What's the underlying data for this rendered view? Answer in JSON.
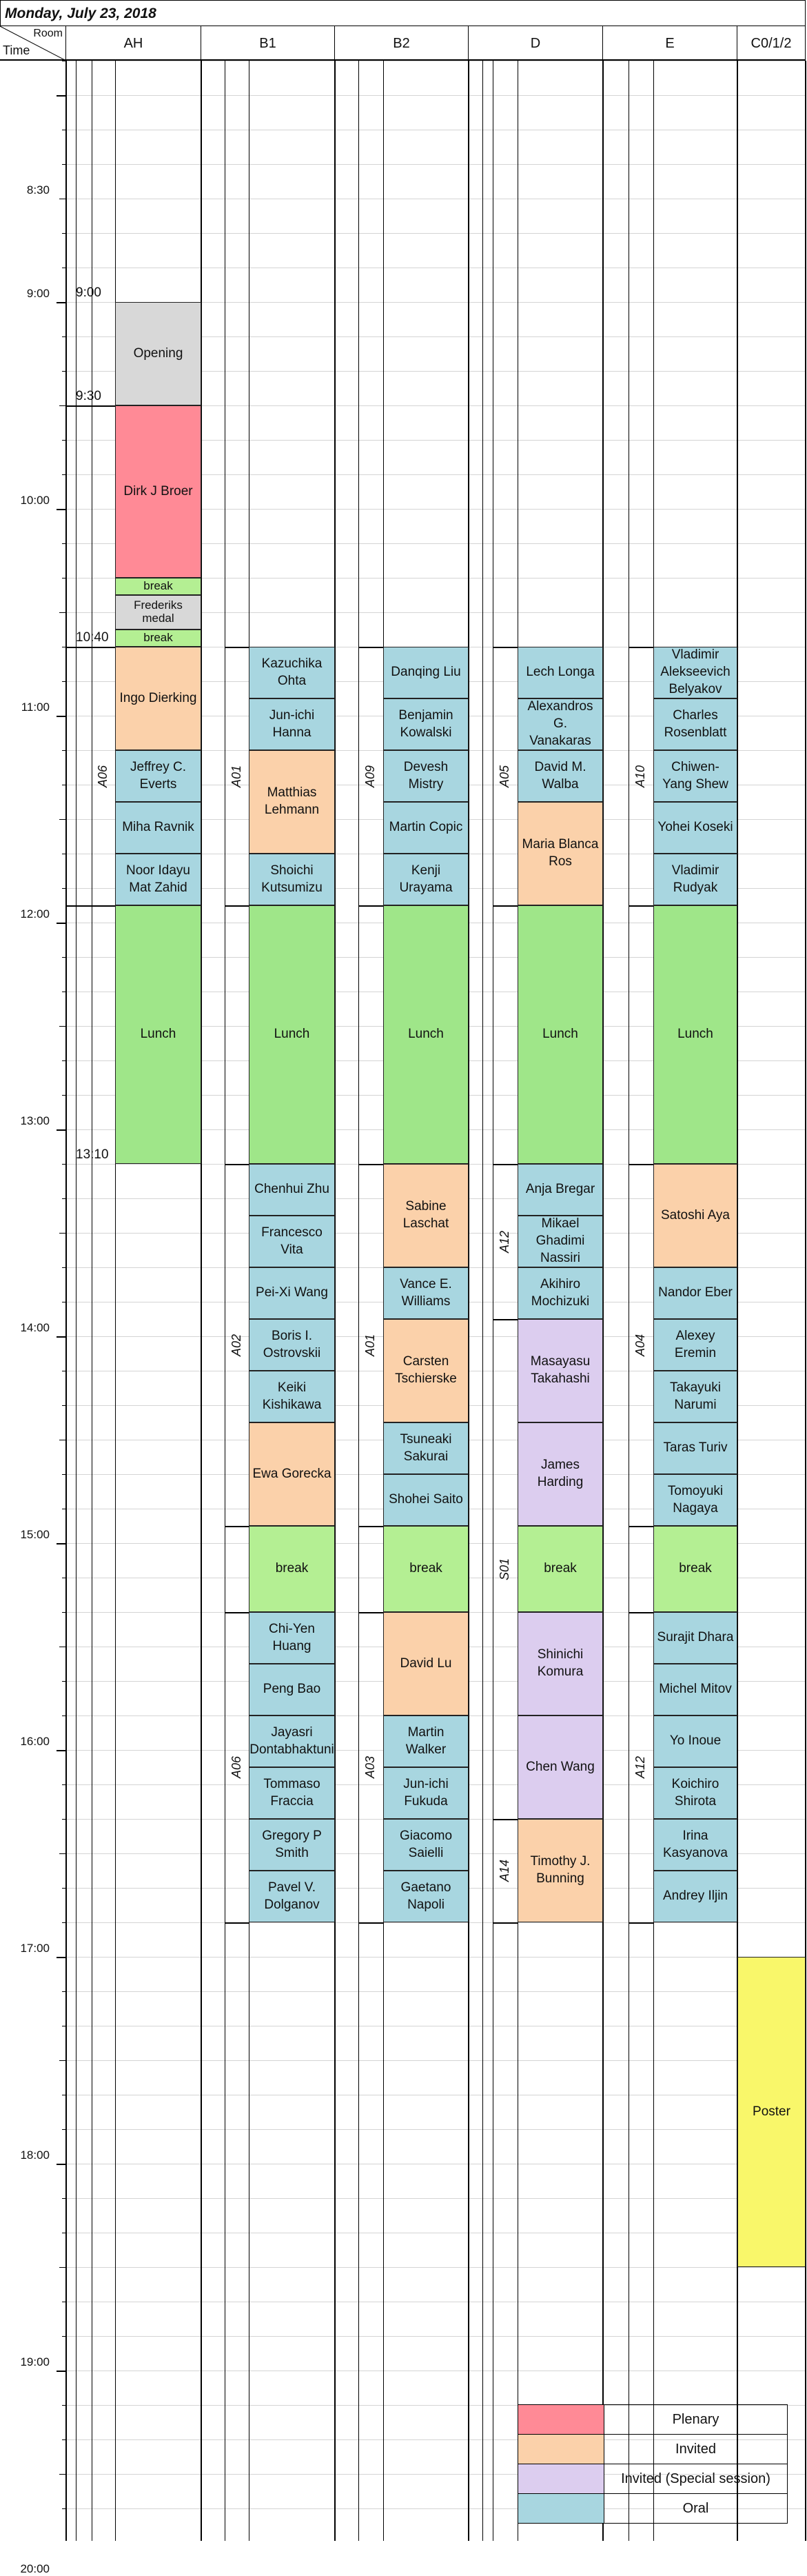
{
  "date": "Monday, July 23, 2018",
  "header": {
    "room_label": "Room",
    "time_label": "Time"
  },
  "colors": {
    "plenary": "#ff8a96",
    "invited": "#fbd1aa",
    "invited_special": "#dccdef",
    "oral": "#a8d6e0",
    "break": "#b4ef93",
    "lunch": "#9fe689",
    "opening": "#d8d8d8",
    "poster": "#f9f76a"
  },
  "rooms": [
    {
      "id": "AH",
      "name": "AH"
    },
    {
      "id": "B1",
      "name": "B1"
    },
    {
      "id": "B2",
      "name": "B2"
    },
    {
      "id": "D",
      "name": "D"
    },
    {
      "id": "E",
      "name": "E"
    },
    {
      "id": "C",
      "name": "C0/1/2"
    }
  ],
  "time_labels": [
    "8:30",
    "9:00",
    "10:00",
    "11:00",
    "12:00",
    "13:00",
    "14:00",
    "15:00",
    "16:00",
    "17:00",
    "18:00",
    "19:00",
    "20:00"
  ],
  "extra_times": [
    "9:00",
    "9:30",
    "10:40",
    "13:10"
  ],
  "sessions": [
    {
      "room": "AH",
      "code": "A06",
      "start": "10:40",
      "end": "11:55"
    },
    {
      "room": "B1",
      "code": "A01",
      "start": "10:40",
      "end": "11:55"
    },
    {
      "room": "B1",
      "code": "A02",
      "start": "13:10",
      "end": "14:55"
    },
    {
      "room": "B1",
      "code": "A06",
      "start": "15:20",
      "end": "16:50"
    },
    {
      "room": "B2",
      "code": "A09",
      "start": "10:40",
      "end": "11:55"
    },
    {
      "room": "B2",
      "code": "A01",
      "start": "13:10",
      "end": "14:55"
    },
    {
      "room": "B2",
      "code": "A03",
      "start": "15:20",
      "end": "16:50"
    },
    {
      "room": "D",
      "code": "A05",
      "start": "10:40",
      "end": "11:55"
    },
    {
      "room": "D",
      "code": "A12",
      "start": "13:10",
      "end": "13:55"
    },
    {
      "room": "D",
      "code": "S01",
      "start": "13:55",
      "end": "16:20"
    },
    {
      "room": "D",
      "code": "A14",
      "start": "16:20",
      "end": "16:50"
    },
    {
      "room": "E",
      "code": "A10",
      "start": "10:40",
      "end": "11:55"
    },
    {
      "room": "E",
      "code": "A04",
      "start": "13:10",
      "end": "14:55"
    },
    {
      "room": "E",
      "code": "A12",
      "start": "15:20",
      "end": "16:50"
    }
  ],
  "events": [
    {
      "room": "AH",
      "start": "9:00",
      "end": "9:30",
      "label": "Opening",
      "type": "opening"
    },
    {
      "room": "AH",
      "start": "9:30",
      "end": "10:20",
      "label": "Dirk J Broer",
      "type": "plenary"
    },
    {
      "room": "AH",
      "start": "10:20",
      "end": "10:25",
      "label": "break",
      "type": "break"
    },
    {
      "room": "AH",
      "start": "10:25",
      "end": "10:35",
      "label": "Frederiks medal",
      "type": "opening"
    },
    {
      "room": "AH",
      "start": "10:35",
      "end": "10:40",
      "label": "break",
      "type": "break"
    },
    {
      "room": "AH",
      "start": "10:40",
      "end": "11:10",
      "label": "Ingo Dierking",
      "type": "invited"
    },
    {
      "room": "AH",
      "start": "11:10",
      "end": "11:25",
      "label": "Jeffrey C. Everts",
      "type": "oral"
    },
    {
      "room": "AH",
      "start": "11:25",
      "end": "11:40",
      "label": "Miha Ravnik",
      "type": "oral"
    },
    {
      "room": "AH",
      "start": "11:40",
      "end": "11:55",
      "label": "Noor Idayu Mat Zahid",
      "type": "oral"
    },
    {
      "room": "AH",
      "start": "11:55",
      "end": "13:10",
      "label": "Lunch",
      "type": "lunch"
    },
    {
      "room": "B1",
      "start": "10:40",
      "end": "10:55",
      "label": "Kazuchika Ohta",
      "type": "oral"
    },
    {
      "room": "B1",
      "start": "10:55",
      "end": "11:10",
      "label": "Jun-ichi Hanna",
      "type": "oral"
    },
    {
      "room": "B1",
      "start": "11:10",
      "end": "11:40",
      "label": "Matthias Lehmann",
      "type": "invited"
    },
    {
      "room": "B1",
      "start": "11:40",
      "end": "11:55",
      "label": "Shoichi Kutsumizu",
      "type": "oral"
    },
    {
      "room": "B1",
      "start": "11:55",
      "end": "13:10",
      "label": "Lunch",
      "type": "lunch"
    },
    {
      "room": "B1",
      "start": "13:10",
      "end": "13:25",
      "label": "Chenhui Zhu",
      "type": "oral"
    },
    {
      "room": "B1",
      "start": "13:25",
      "end": "13:40",
      "label": "Francesco Vita",
      "type": "oral"
    },
    {
      "room": "B1",
      "start": "13:40",
      "end": "13:55",
      "label": "Pei-Xi Wang",
      "type": "oral"
    },
    {
      "room": "B1",
      "start": "13:55",
      "end": "14:10",
      "label": "Boris I. Ostrovskii",
      "type": "oral"
    },
    {
      "room": "B1",
      "start": "14:10",
      "end": "14:25",
      "label": "Keiki Kishikawa",
      "type": "oral"
    },
    {
      "room": "B1",
      "start": "14:25",
      "end": "14:55",
      "label": "Ewa Gorecka",
      "type": "invited"
    },
    {
      "room": "B1",
      "start": "14:55",
      "end": "15:20",
      "label": "break",
      "type": "break"
    },
    {
      "room": "B1",
      "start": "15:20",
      "end": "15:35",
      "label": "Chi-Yen Huang",
      "type": "oral"
    },
    {
      "room": "B1",
      "start": "15:35",
      "end": "15:50",
      "label": "Peng Bao",
      "type": "oral"
    },
    {
      "room": "B1",
      "start": "15:50",
      "end": "16:05",
      "label": "Jayasri Dontabhaktuni",
      "type": "oral"
    },
    {
      "room": "B1",
      "start": "16:05",
      "end": "16:20",
      "label": "Tommaso Fraccia",
      "type": "oral"
    },
    {
      "room": "B1",
      "start": "16:20",
      "end": "16:35",
      "label": "Gregory P Smith",
      "type": "oral"
    },
    {
      "room": "B1",
      "start": "16:35",
      "end": "16:50",
      "label": "Pavel V. Dolganov",
      "type": "oral"
    },
    {
      "room": "B2",
      "start": "10:40",
      "end": "10:55",
      "label": "Danqing Liu",
      "type": "oral"
    },
    {
      "room": "B2",
      "start": "10:55",
      "end": "11:10",
      "label": "Benjamin Kowalski",
      "type": "oral"
    },
    {
      "room": "B2",
      "start": "11:10",
      "end": "11:25",
      "label": "Devesh Mistry",
      "type": "oral"
    },
    {
      "room": "B2",
      "start": "11:25",
      "end": "11:40",
      "label": "Martin Copic",
      "type": "oral"
    },
    {
      "room": "B2",
      "start": "11:40",
      "end": "11:55",
      "label": "Kenji Urayama",
      "type": "oral"
    },
    {
      "room": "B2",
      "start": "11:55",
      "end": "13:10",
      "label": "Lunch",
      "type": "lunch"
    },
    {
      "room": "B2",
      "start": "13:10",
      "end": "13:40",
      "label": "Sabine Laschat",
      "type": "invited"
    },
    {
      "room": "B2",
      "start": "13:40",
      "end": "13:55",
      "label": "Vance E. Williams",
      "type": "oral"
    },
    {
      "room": "B2",
      "start": "13:55",
      "end": "14:25",
      "label": "Carsten Tschierske",
      "type": "invited"
    },
    {
      "room": "B2",
      "start": "14:25",
      "end": "14:40",
      "label": "Tsuneaki Sakurai",
      "type": "oral"
    },
    {
      "room": "B2",
      "start": "14:40",
      "end": "14:55",
      "label": "Shohei Saito",
      "type": "oral"
    },
    {
      "room": "B2",
      "start": "14:55",
      "end": "15:20",
      "label": "break",
      "type": "break"
    },
    {
      "room": "B2",
      "start": "15:20",
      "end": "15:50",
      "label": "David Lu",
      "type": "invited"
    },
    {
      "room": "B2",
      "start": "15:50",
      "end": "16:05",
      "label": "Martin Walker",
      "type": "oral"
    },
    {
      "room": "B2",
      "start": "16:05",
      "end": "16:20",
      "label": "Jun-ichi Fukuda",
      "type": "oral"
    },
    {
      "room": "B2",
      "start": "16:20",
      "end": "16:35",
      "label": "Giacomo Saielli",
      "type": "oral"
    },
    {
      "room": "B2",
      "start": "16:35",
      "end": "16:50",
      "label": "Gaetano Napoli",
      "type": "oral"
    },
    {
      "room": "D",
      "start": "10:40",
      "end": "10:55",
      "label": "Lech Longa",
      "type": "oral"
    },
    {
      "room": "D",
      "start": "10:55",
      "end": "11:10",
      "label": "Alexandros G. Vanakaras",
      "type": "oral"
    },
    {
      "room": "D",
      "start": "11:10",
      "end": "11:25",
      "label": "David M. Walba",
      "type": "oral"
    },
    {
      "room": "D",
      "start": "11:25",
      "end": "11:55",
      "label": "Maria Blanca Ros",
      "type": "invited"
    },
    {
      "room": "D",
      "start": "11:55",
      "end": "13:10",
      "label": "Lunch",
      "type": "lunch"
    },
    {
      "room": "D",
      "start": "13:10",
      "end": "13:25",
      "label": "Anja Bregar",
      "type": "oral"
    },
    {
      "room": "D",
      "start": "13:25",
      "end": "13:40",
      "label": "Mikael Ghadimi Nassiri",
      "type": "oral"
    },
    {
      "room": "D",
      "start": "13:40",
      "end": "13:55",
      "label": "Akihiro Mochizuki",
      "type": "oral"
    },
    {
      "room": "D",
      "start": "13:55",
      "end": "14:25",
      "label": "Masayasu Takahashi",
      "type": "invited_special"
    },
    {
      "room": "D",
      "start": "14:25",
      "end": "14:55",
      "label": "James Harding",
      "type": "invited_special"
    },
    {
      "room": "D",
      "start": "14:55",
      "end": "15:20",
      "label": "break",
      "type": "break"
    },
    {
      "room": "D",
      "start": "15:20",
      "end": "15:50",
      "label": "Shinichi Komura",
      "type": "invited_special"
    },
    {
      "room": "D",
      "start": "15:50",
      "end": "16:20",
      "label": "Chen Wang",
      "type": "invited_special"
    },
    {
      "room": "D",
      "start": "16:20",
      "end": "16:50",
      "label": "Timothy J. Bunning",
      "type": "invited"
    },
    {
      "room": "E",
      "start": "10:40",
      "end": "10:55",
      "label": "Vladimir Alekseevich Belyakov",
      "type": "oral"
    },
    {
      "room": "E",
      "start": "10:55",
      "end": "11:10",
      "label": "Charles Rosenblatt",
      "type": "oral"
    },
    {
      "room": "E",
      "start": "11:10",
      "end": "11:25",
      "label": "Chiwen-Yang Shew",
      "type": "oral"
    },
    {
      "room": "E",
      "start": "11:25",
      "end": "11:40",
      "label": "Yohei Koseki",
      "type": "oral"
    },
    {
      "room": "E",
      "start": "11:40",
      "end": "11:55",
      "label": "Vladimir Rudyak",
      "type": "oral"
    },
    {
      "room": "E",
      "start": "11:55",
      "end": "13:10",
      "label": "Lunch",
      "type": "lunch"
    },
    {
      "room": "E",
      "start": "13:10",
      "end": "13:40",
      "label": "Satoshi Aya",
      "type": "invited"
    },
    {
      "room": "E",
      "start": "13:40",
      "end": "13:55",
      "label": "Nandor Eber",
      "type": "oral"
    },
    {
      "room": "E",
      "start": "13:55",
      "end": "14:10",
      "label": "Alexey Eremin",
      "type": "oral"
    },
    {
      "room": "E",
      "start": "14:10",
      "end": "14:25",
      "label": "Takayuki Narumi",
      "type": "oral"
    },
    {
      "room": "E",
      "start": "14:25",
      "end": "14:40",
      "label": "Taras Turiv",
      "type": "oral"
    },
    {
      "room": "E",
      "start": "14:40",
      "end": "14:55",
      "label": "Tomoyuki Nagaya",
      "type": "oral"
    },
    {
      "room": "E",
      "start": "14:55",
      "end": "15:20",
      "label": "break",
      "type": "break"
    },
    {
      "room": "E",
      "start": "15:20",
      "end": "15:35",
      "label": "Surajit Dhara",
      "type": "oral"
    },
    {
      "room": "E",
      "start": "15:35",
      "end": "15:50",
      "label": "Michel Mitov",
      "type": "oral"
    },
    {
      "room": "E",
      "start": "15:50",
      "end": "16:05",
      "label": "Yo Inoue",
      "type": "oral"
    },
    {
      "room": "E",
      "start": "16:05",
      "end": "16:20",
      "label": "Koichiro Shirota",
      "type": "oral"
    },
    {
      "room": "E",
      "start": "16:20",
      "end": "16:35",
      "label": "Irina Kasyanova",
      "type": "oral"
    },
    {
      "room": "E",
      "start": "16:35",
      "end": "16:50",
      "label": "Andrey Iljin",
      "type": "oral"
    },
    {
      "room": "C",
      "start": "17:00",
      "end": "18:30",
      "label": "Poster",
      "type": "poster"
    }
  ],
  "legend": [
    {
      "label": "Plenary",
      "type": "plenary"
    },
    {
      "label": "Invited",
      "type": "invited"
    },
    {
      "label": "Invited (Special session)",
      "type": "invited_special"
    },
    {
      "label": "Oral",
      "type": "oral"
    }
  ]
}
